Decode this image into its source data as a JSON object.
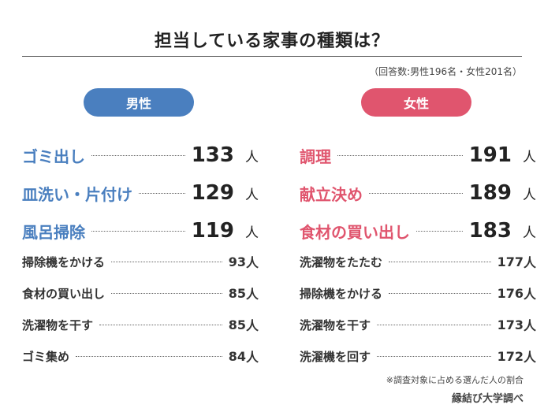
{
  "title": "担当している家事の種類は？",
  "note": "（回答数:男性196名・女性201名）",
  "colors": {
    "male": "#4a7fbf",
    "female": "#e0556e"
  },
  "chart_data": [
    {
      "type": "table",
      "title": "男性",
      "unit": "人",
      "categories": [
        "ゴミ出し",
        "皿洗い・片付け",
        "風呂掃除",
        "掃除機をかける",
        "食材の買い出し",
        "洗濯物を干す",
        "ゴミ集め"
      ],
      "values": [
        133,
        129,
        119,
        93,
        85,
        85,
        84
      ]
    },
    {
      "type": "table",
      "title": "女性",
      "unit": "人",
      "categories": [
        "調理",
        "献立決め",
        "食材の買い出し",
        "洗濯物をたたむ",
        "掃除機をかける",
        "洗濯物を干す",
        "洗濯機を回す"
      ],
      "values": [
        191,
        189,
        183,
        177,
        176,
        173,
        172
      ]
    }
  ],
  "footnote": "※調査対象に占める選んだ人の割合",
  "source": "縁結び大学調べ"
}
